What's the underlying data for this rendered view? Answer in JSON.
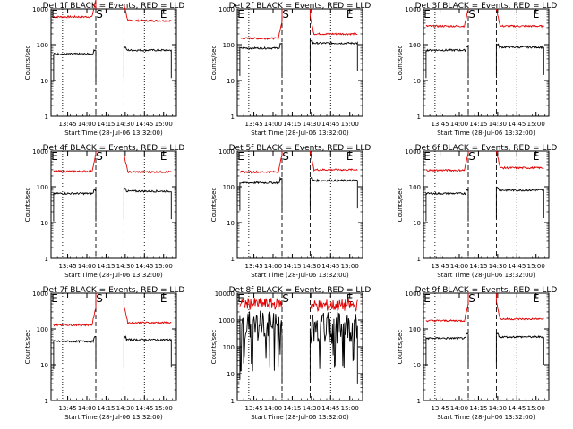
{
  "chart_data": [
    {
      "type": "line",
      "title": "Det 1f BLACK = Events, RED = LLD",
      "ylabel": "Counts/sec",
      "xlabel": "Start Time (28-Jul-06 13:32:00)",
      "x_ticks": [
        "13:45",
        "14:00",
        "14:15",
        "14:30",
        "14:45",
        "15:00"
      ],
      "y_ticks": [
        "1",
        "10",
        "100",
        "1000"
      ],
      "ylim": [
        1,
        1000
      ],
      "y_scale": "log",
      "markers": [
        "E",
        "S",
        "E"
      ],
      "lld_level": [
        600,
        470
      ],
      "event_level": [
        55,
        70
      ],
      "style": "quiet"
    },
    {
      "type": "line",
      "title": "Det 2f BLACK = Events, RED = LLD",
      "ylabel": "Counts/sec",
      "xlabel": "Start Time (28-Jul-06 13:32:00)",
      "x_ticks": [
        "13:45",
        "14:00",
        "14:15",
        "14:30",
        "14:45",
        "15:00"
      ],
      "y_ticks": [
        "1",
        "10",
        "100",
        "1000"
      ],
      "ylim": [
        1,
        1000
      ],
      "y_scale": "log",
      "markers": [
        "E",
        "S",
        "E"
      ],
      "lld_level": [
        150,
        200
      ],
      "event_level": [
        80,
        110
      ],
      "style": "quiet"
    },
    {
      "type": "line",
      "title": "Det 3f BLACK = Events, RED = LLD",
      "ylabel": "Counts/sec",
      "xlabel": "Start Time (28-Jul-06 13:32:00)",
      "x_ticks": [
        "13:45",
        "14:00",
        "14:15",
        "14:30",
        "14:45",
        "15:00"
      ],
      "y_ticks": [
        "1",
        "10",
        "100",
        "1000"
      ],
      "ylim": [
        1,
        1000
      ],
      "y_scale": "log",
      "markers": [
        "E",
        "S",
        "E"
      ],
      "lld_level": [
        330,
        330
      ],
      "event_level": [
        70,
        85
      ],
      "style": "quiet"
    },
    {
      "type": "line",
      "title": "Det 4f BLACK = Events, RED = LLD",
      "ylabel": "Counts/sec",
      "xlabel": "Start Time (28-Jul-06 13:32:00)",
      "x_ticks": [
        "13:45",
        "14:00",
        "14:15",
        "14:30",
        "14:45",
        "15:00"
      ],
      "y_ticks": [
        "1",
        "10",
        "100",
        "1000"
      ],
      "ylim": [
        1,
        1000
      ],
      "y_scale": "log",
      "markers": [
        "E",
        "S",
        "E"
      ],
      "lld_level": [
        270,
        260
      ],
      "event_level": [
        65,
        75
      ],
      "style": "quiet"
    },
    {
      "type": "line",
      "title": "Det 5f BLACK = Events, RED = LLD",
      "ylabel": "Counts/sec",
      "xlabel": "Start Time (28-Jul-06 13:32:00)",
      "x_ticks": [
        "13:45",
        "14:00",
        "14:15",
        "14:30",
        "14:45",
        "15:00"
      ],
      "y_ticks": [
        "1",
        "10",
        "100",
        "1000"
      ],
      "ylim": [
        1,
        1000
      ],
      "y_scale": "log",
      "markers": [
        "E",
        "S",
        "E"
      ],
      "lld_level": [
        260,
        300
      ],
      "event_level": [
        130,
        150
      ],
      "style": "quiet"
    },
    {
      "type": "line",
      "title": "Det 6f BLACK = Events, RED = LLD",
      "ylabel": "Counts/sec",
      "xlabel": "Start Time (28-Jul-06 13:32:00)",
      "x_ticks": [
        "13:45",
        "14:00",
        "14:15",
        "14:30",
        "14:45",
        "15:00"
      ],
      "y_ticks": [
        "1",
        "10",
        "100",
        "1000"
      ],
      "ylim": [
        1,
        1000
      ],
      "y_scale": "log",
      "markers": [
        "E",
        "S",
        "E"
      ],
      "lld_level": [
        290,
        340
      ],
      "event_level": [
        65,
        80
      ],
      "style": "quiet"
    },
    {
      "type": "line",
      "title": "Det 7f BLACK = Events, RED = LLD",
      "ylabel": "Counts/sec",
      "xlabel": "Start Time (28-Jul-06 13:32:00)",
      "x_ticks": [
        "13:45",
        "14:00",
        "14:15",
        "14:30",
        "14:45",
        "15:00"
      ],
      "y_ticks": [
        "1",
        "10",
        "100",
        "1000"
      ],
      "ylim": [
        1,
        1000
      ],
      "y_scale": "log",
      "markers": [
        "E",
        "S",
        "E"
      ],
      "lld_level": [
        130,
        150
      ],
      "event_level": [
        45,
        50
      ],
      "style": "quiet"
    },
    {
      "type": "line",
      "title": "Det 8f BLACK = Events, RED = LLD",
      "ylabel": "Counts/sec",
      "xlabel": "Start Time (28-Jul-06 13:32:00)",
      "x_ticks": [
        "13:45",
        "14:00",
        "14:15",
        "14:30",
        "14:45",
        "15:00"
      ],
      "y_ticks": [
        "1",
        "10",
        "100",
        "1000",
        "10000"
      ],
      "ylim": [
        1,
        10000
      ],
      "y_scale": "log",
      "markers": [
        "E",
        "S",
        "E"
      ],
      "lld_level": [
        4000,
        3500
      ],
      "event_level": [
        600,
        500
      ],
      "style": "noisy"
    },
    {
      "type": "line",
      "title": "Det 9f BLACK = Events, RED = LLD",
      "ylabel": "Counts/sec",
      "xlabel": "Start Time (28-Jul-06 13:32:00)",
      "x_ticks": [
        "13:45",
        "14:00",
        "14:15",
        "14:30",
        "14:45",
        "15:00"
      ],
      "y_ticks": [
        "1",
        "10",
        "100",
        "1000"
      ],
      "ylim": [
        1,
        1000
      ],
      "y_scale": "log",
      "markers": [
        "E",
        "S",
        "E"
      ],
      "lld_level": [
        170,
        190
      ],
      "event_level": [
        55,
        60
      ],
      "style": "quiet"
    }
  ],
  "colors": {
    "events": "#000000",
    "lld": "#e00000",
    "axes": "#000000",
    "background": "#ffffff"
  }
}
